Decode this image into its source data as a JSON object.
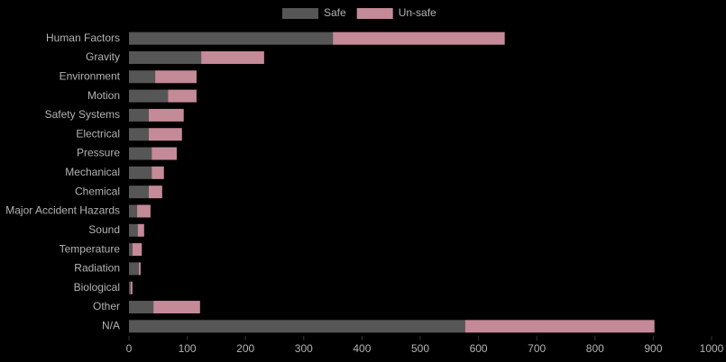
{
  "chart_data": {
    "type": "stacked-barh",
    "categories": [
      "Human Factors",
      "Gravity",
      "Environment",
      "Motion",
      "Safety Systems",
      "Electrical",
      "Pressure",
      "Mechanical",
      "Chemical",
      "Major Accident Hazards",
      "Sound",
      "Temperature",
      "Radiation",
      "Biological",
      "Other",
      "N/A"
    ],
    "series": [
      {
        "name": "Safe",
        "color": "#565656",
        "values": [
          350,
          124,
          45,
          67,
          34,
          34,
          39,
          39,
          34,
          14,
          15,
          6,
          17,
          3,
          42,
          577
        ]
      },
      {
        "name": "Un-safe",
        "color": "#c48a98",
        "values": [
          295,
          108,
          71,
          49,
          60,
          57,
          43,
          21,
          23,
          23,
          11,
          16,
          3,
          3,
          80,
          325
        ]
      }
    ],
    "xlim": [
      0,
      1000
    ],
    "xticks": [
      0,
      100,
      200,
      300,
      400,
      500,
      600,
      700,
      800,
      900,
      1000
    ],
    "legend": "top"
  }
}
